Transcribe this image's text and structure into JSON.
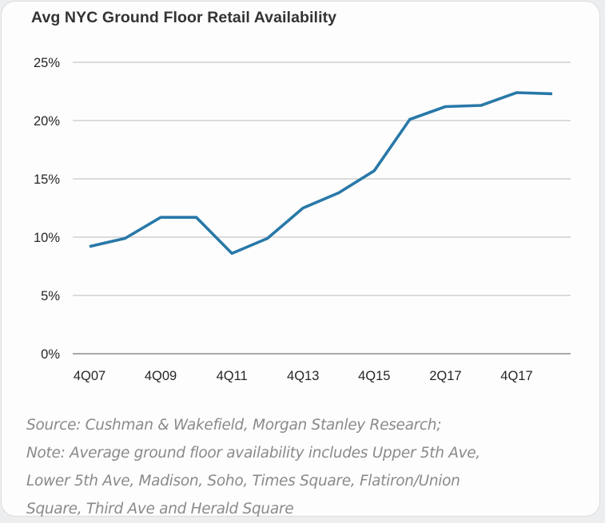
{
  "chart_data": {
    "type": "line",
    "title": "Avg NYC Ground Floor Retail Availability",
    "xlabel": "",
    "ylabel": "",
    "categories": [
      "4Q07",
      "",
      "4Q09",
      "",
      "4Q11",
      "",
      "4Q13",
      "",
      "4Q15",
      "",
      "2Q17",
      "",
      "4Q17",
      ""
    ],
    "series": [
      {
        "name": "Avg NYC Ground Floor Retail Availability",
        "color": "#2878a8",
        "values": [
          9.2,
          9.9,
          11.7,
          11.7,
          8.6,
          9.9,
          12.5,
          13.8,
          15.7,
          20.1,
          21.2,
          21.3,
          22.4,
          22.3
        ]
      }
    ],
    "ylim": [
      0,
      25
    ],
    "yticks": [
      0,
      5,
      10,
      15,
      20,
      25
    ],
    "ytick_labels": [
      "0%",
      "5%",
      "10%",
      "15%",
      "20%",
      "25%"
    ],
    "xtick_labels": [
      "4Q07",
      "4Q09",
      "4Q11",
      "4Q13",
      "4Q15",
      "2Q17",
      "4Q17"
    ],
    "grid": true,
    "legend": "none"
  },
  "note": {
    "lines": [
      "Source: Cushman & Wakefield, Morgan Stanley Research;",
      "Note: Average ground floor availability includes Upper 5th Ave,",
      "Lower 5th Ave, Madison, Soho, Times Square, Flatiron/Union",
      "Square, Third Ave and Herald Square"
    ]
  },
  "colors": {
    "line": "#2878a8",
    "grid": "#d0d0d0",
    "axis": "#8c8c8c"
  }
}
